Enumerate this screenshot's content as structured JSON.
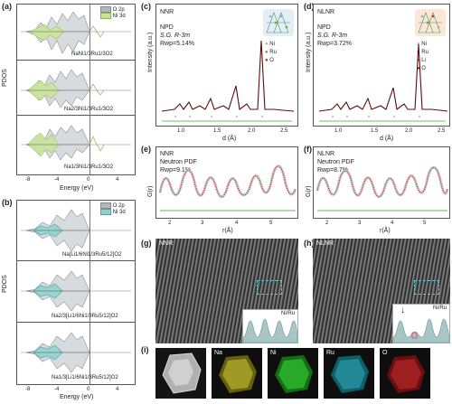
{
  "panels": {
    "a": {
      "label": "(a)",
      "legend": [
        "O 2p",
        "Ni 3d"
      ],
      "subpanels": [
        "NaNi1/3Ru1/3O2",
        "Na2/3Ni1/3Ru1/3O2",
        "Na1/3Ni1/3Ru1/3O2"
      ],
      "ylabel": "PDOS",
      "xlabel": "Energy (eV)",
      "xticks": [
        "-8",
        "-4",
        "0",
        "4"
      ],
      "colors": {
        "o2p": "#9aa3a8",
        "ni3d": "#b8d97a"
      }
    },
    "b": {
      "label": "(b)",
      "legend": [
        "O 2p",
        "Ni 3d"
      ],
      "subpanels": [
        "Na[Li1/6Ni1/3Ru5/12]O2",
        "Na2/3[Li1/6Ni1/3Ru5/12]O2",
        "Na1/3[Li1/6Ni1/3Ru5/12]O2"
      ],
      "ylabel": "PDOS",
      "xlabel": "Energy (eV)",
      "xticks": [
        "-8",
        "-4",
        "0",
        "4"
      ],
      "colors": {
        "o2p": "#9aa3a8",
        "ni3d": "#69bdbd"
      }
    },
    "c": {
      "label": "(c)",
      "title": "NNR",
      "method": "NPD",
      "sg": "S.G. R-3m",
      "rwp": "Rwp=5.14%",
      "legend": [
        "Ni",
        "Ru",
        "O"
      ],
      "ylabel": "Intensity (a.u.)",
      "xlabel": "d (Å)",
      "xticks": [
        "1.0",
        "1.5",
        "2.0",
        "2.5"
      ]
    },
    "d": {
      "label": "(d)",
      "title": "NLNR",
      "method": "NPD",
      "sg": "S.G. R-3m",
      "rwp": "Rwp=3.72%",
      "legend": [
        "Ni",
        "Ru",
        "Li",
        "O"
      ],
      "ylabel": "Intensity (a.u.)",
      "xlabel": "d (Å)",
      "xticks": [
        "1.0",
        "1.5",
        "2.0",
        "2.5"
      ]
    },
    "e": {
      "label": "(e)",
      "title": "NNR",
      "method": "Neutron PDF",
      "rwp": "Rwp=9.1%",
      "ylabel": "G(r)",
      "xlabel": "r(Å)",
      "xticks": [
        "2",
        "3",
        "4",
        "5"
      ]
    },
    "f": {
      "label": "(f)",
      "title": "NLNR",
      "method": "Neutron PDF",
      "rwp": "Rwp=8.7%",
      "ylabel": "G(r)",
      "xlabel": "r(Å)",
      "xticks": [
        "2",
        "3",
        "4",
        "5"
      ]
    },
    "g": {
      "label": "(g)",
      "title": "NNR",
      "inset": "Ni/Ru"
    },
    "h": {
      "label": "(h)",
      "title": "NLNR",
      "inset": "Ni/Ru"
    },
    "i": {
      "label": "(i)",
      "maps": [
        {
          "name": "",
          "color": "#7f7f7f"
        },
        {
          "name": "Na",
          "color": "#d6d23a"
        },
        {
          "name": "Ni",
          "color": "#2fb52f"
        },
        {
          "name": "Ru",
          "color": "#3fb8c8"
        },
        {
          "name": "O",
          "color": "#c83030"
        }
      ]
    }
  }
}
